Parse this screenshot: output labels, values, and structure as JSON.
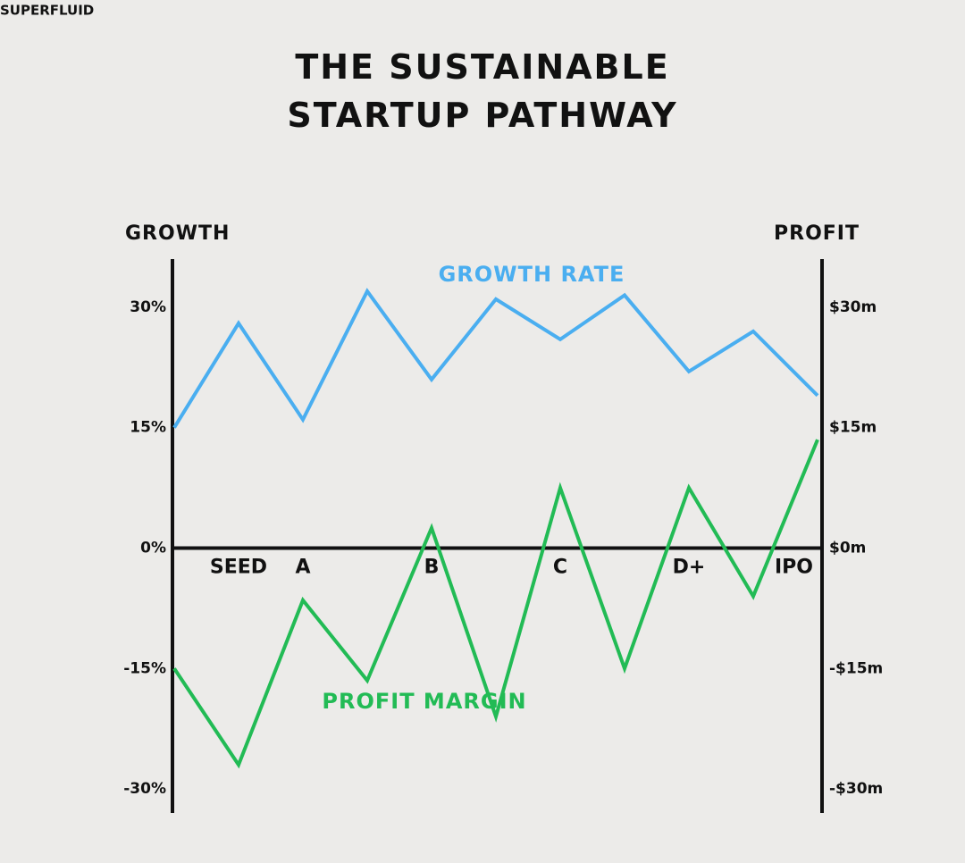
{
  "chart_data": {
    "type": "line",
    "source": "SUPERFLUID",
    "title": "THE SUSTAINABLE STARTUP PATHWAY",
    "ylabel": "GROWTH",
    "y2label": "PROFIT",
    "categories": [
      null,
      "SEED",
      "A",
      null,
      "B",
      null,
      "C",
      null,
      "D+",
      null,
      "IPO"
    ],
    "series": [
      {
        "name": "GROWTH RATE",
        "color": "#4aaef0",
        "values": [
          15,
          28,
          16,
          32,
          21,
          31,
          26,
          31.5,
          22,
          27,
          19
        ]
      },
      {
        "name": "PROFIT MARGIN",
        "color": "#22bb55",
        "axis": "y2",
        "values": [
          -15,
          -27,
          -6.5,
          -16.5,
          2.5,
          -21,
          7.5,
          -15,
          7.5,
          -6,
          13.5
        ]
      }
    ],
    "ylim": [
      -33,
      36
    ],
    "yticks": [
      {
        "value": 30,
        "label": "30%"
      },
      {
        "value": 15,
        "label": "15%"
      },
      {
        "value": 0,
        "label": "0%"
      },
      {
        "value": -15,
        "label": "-15%"
      },
      {
        "value": -30,
        "label": "-30%"
      }
    ],
    "y2lim": [
      -33,
      36
    ],
    "y2ticks": [
      {
        "value": 30,
        "label": "$30m"
      },
      {
        "value": 15,
        "label": "$15m"
      },
      {
        "value": 0,
        "label": "$0m"
      },
      {
        "value": -15,
        "label": "-$15m"
      },
      {
        "value": -30,
        "label": "-$30m"
      }
    ],
    "grid": false
  }
}
